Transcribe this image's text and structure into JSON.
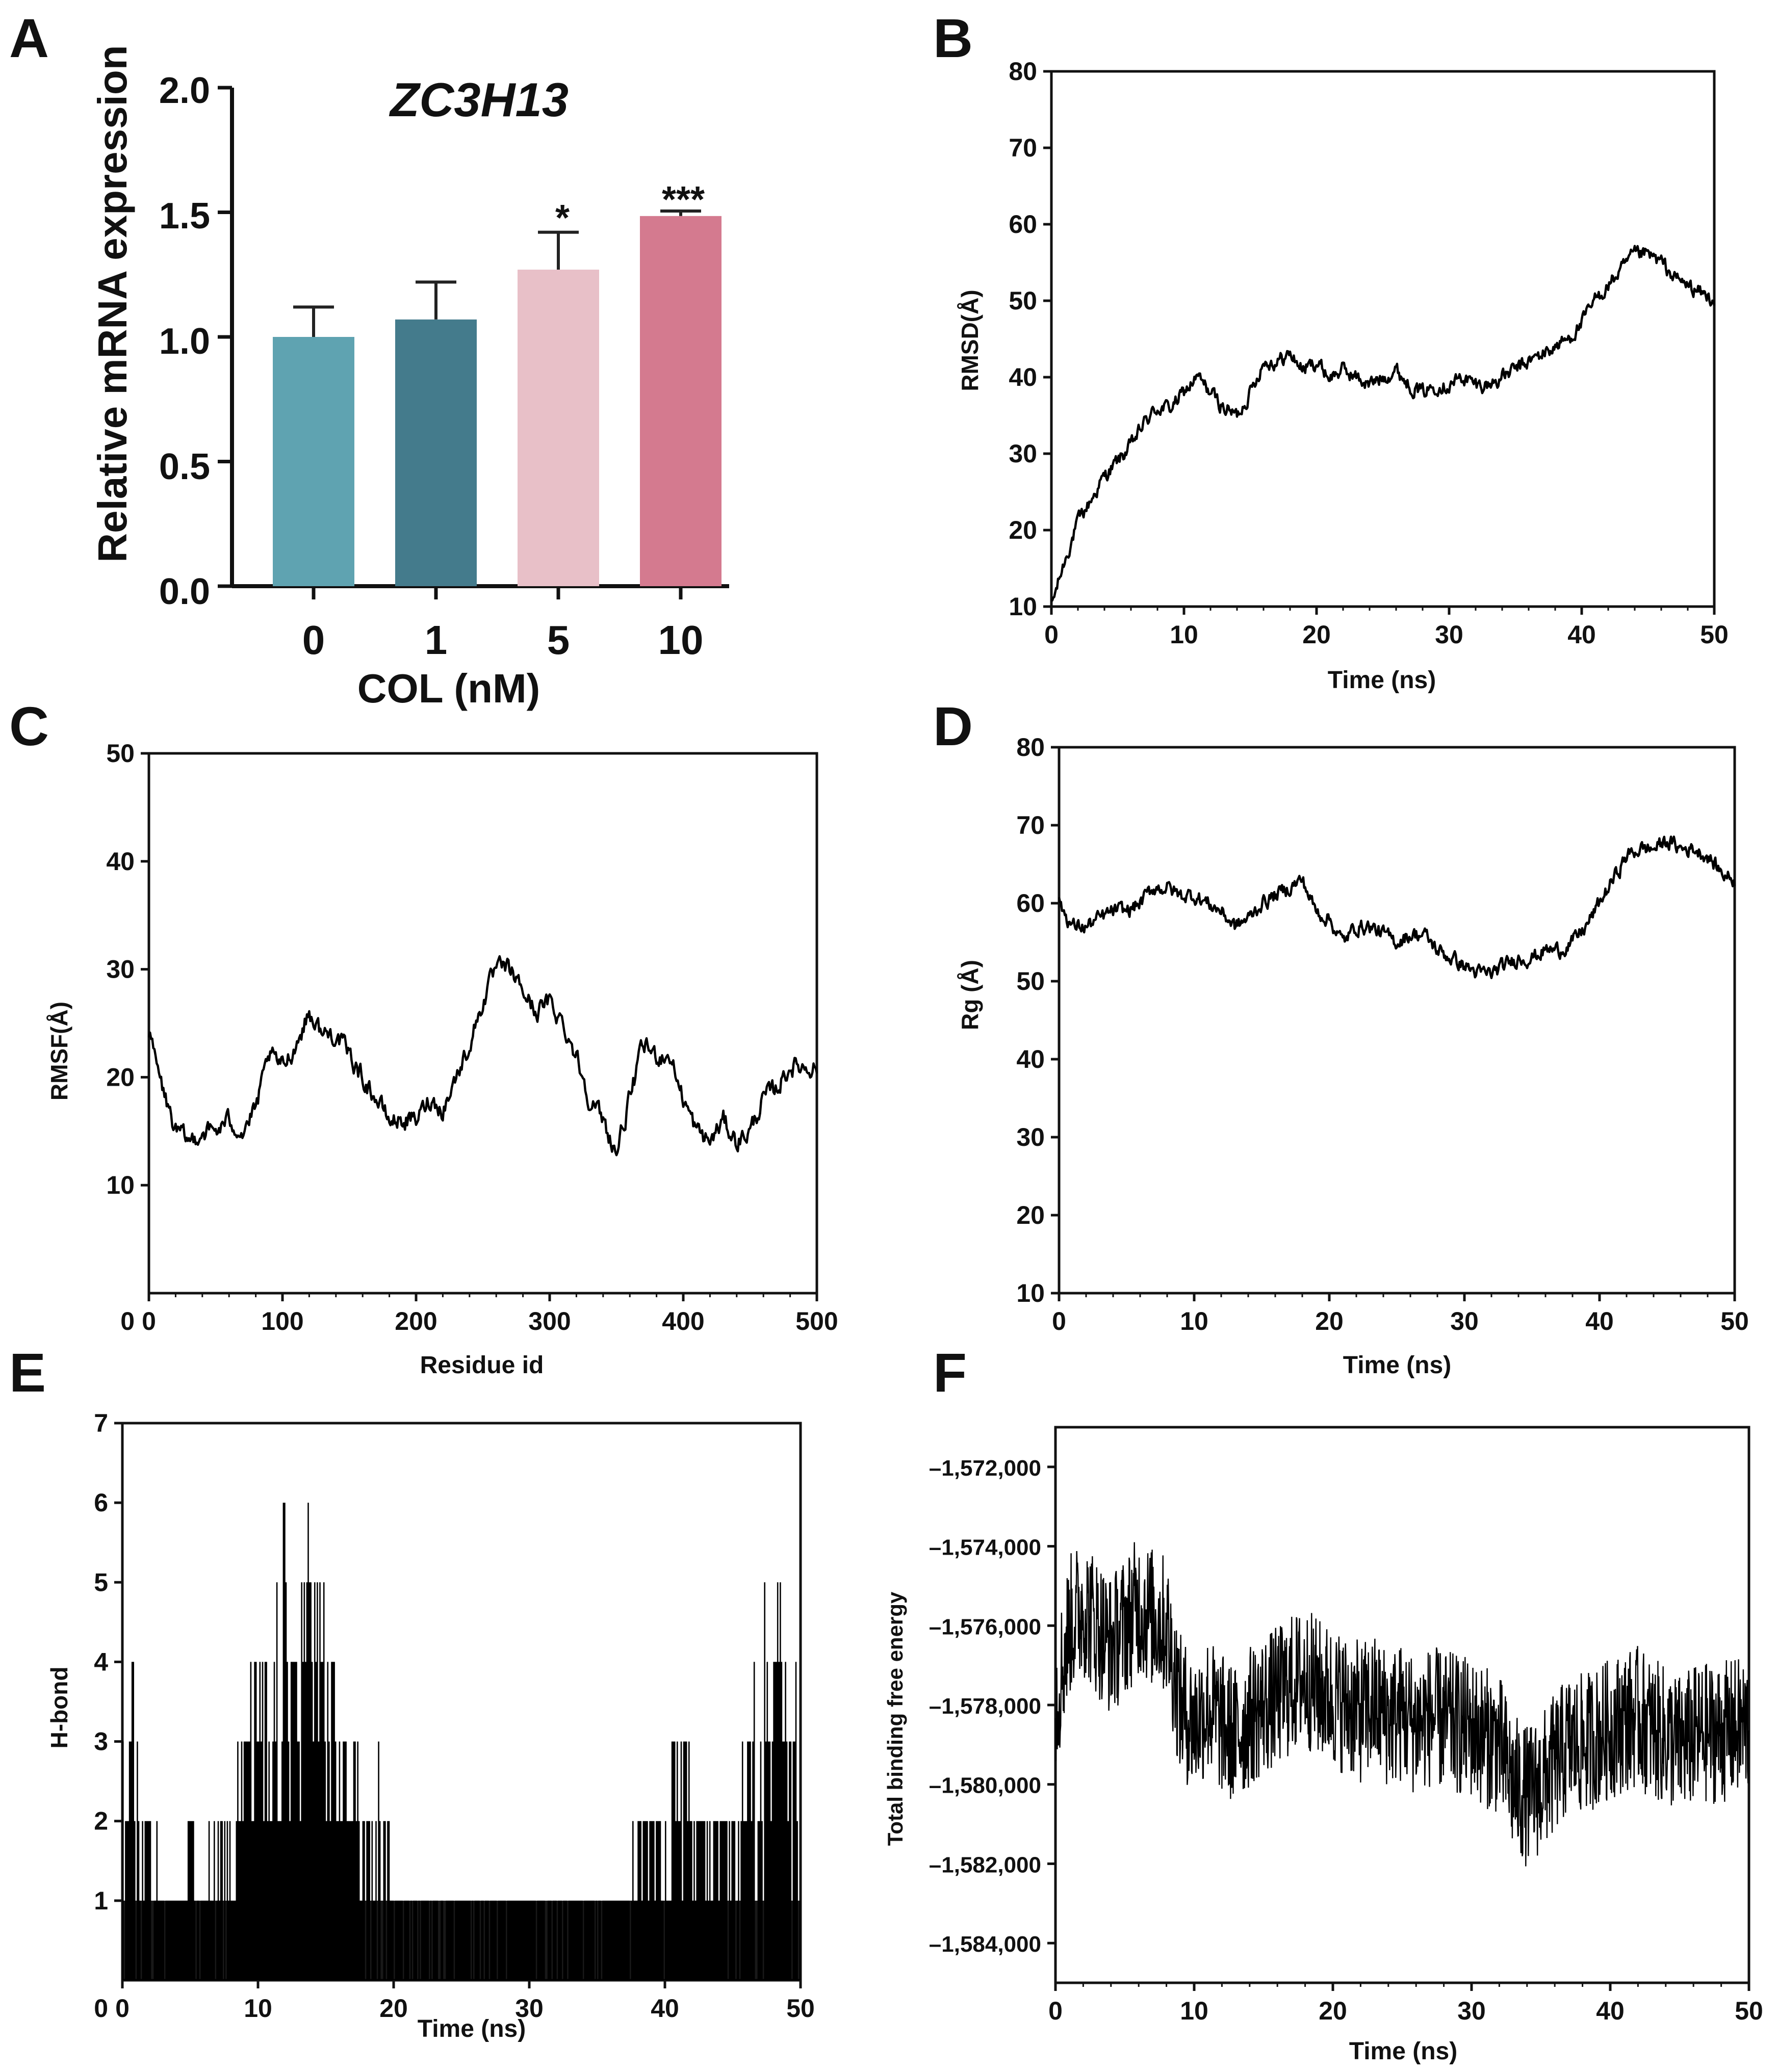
{
  "chart_data": [
    {
      "panel": "A",
      "type": "bar",
      "title": "ZC3H13",
      "xlabel": "COL (nM)",
      "ylabel": "Relative mRNA expression",
      "categories": [
        "0",
        "1",
        "5",
        "10"
      ],
      "values": [
        1.0,
        1.07,
        1.27,
        1.485
      ],
      "errors": [
        0.12,
        0.15,
        0.15,
        0.02
      ],
      "significance": [
        "",
        "",
        "*",
        "***"
      ],
      "colors": [
        "#5fa3b1",
        "#447b8c",
        "#e8c0c8",
        "#d47a8f"
      ],
      "ylim": [
        0,
        2.0
      ],
      "yticks": [
        "0.0",
        "0.5",
        "1.0",
        "1.5",
        "2.0"
      ]
    },
    {
      "panel": "B",
      "type": "line",
      "xlabel": "Time (ns)",
      "ylabel": "RMSD(Å)",
      "xlim": [
        0,
        50
      ],
      "ylim": [
        10,
        80
      ],
      "xticks": [
        "0",
        "10",
        "20",
        "30",
        "40",
        "50"
      ],
      "yticks": [
        "10",
        "20",
        "30",
        "40",
        "50",
        "60",
        "70",
        "80"
      ],
      "x": [
        0,
        1,
        2,
        3,
        4,
        5,
        6,
        7,
        8,
        9,
        10,
        11,
        12,
        13,
        14,
        15,
        16,
        17,
        18,
        19,
        20,
        21,
        22,
        23,
        24,
        25,
        26,
        27,
        28,
        29,
        30,
        31,
        32,
        33,
        34,
        35,
        36,
        37,
        38,
        39,
        40,
        41,
        42,
        43,
        44,
        45,
        46,
        47,
        48,
        49,
        50
      ],
      "y": [
        10,
        16,
        21,
        24,
        27,
        29,
        31,
        34,
        36,
        36,
        38,
        40,
        38,
        36,
        35,
        38,
        42,
        42,
        43,
        41,
        42,
        40,
        41,
        40,
        39,
        40,
        41,
        39,
        38,
        39,
        39,
        40,
        39,
        39,
        40,
        41,
        42,
        43,
        44,
        45,
        47,
        50,
        52,
        54,
        56,
        56,
        55,
        53,
        52,
        51,
        50
      ]
    },
    {
      "panel": "C",
      "type": "line",
      "xlabel": "Residue id",
      "ylabel": "RMSF(Å)",
      "xlim": [
        0,
        500
      ],
      "ylim": [
        0,
        50
      ],
      "xticks": [
        "0",
        "100",
        "200",
        "300",
        "400",
        "500"
      ],
      "yticks": [
        "10",
        "20",
        "30",
        "40",
        "50"
      ],
      "x": [
        0,
        10,
        20,
        30,
        40,
        50,
        60,
        70,
        80,
        90,
        100,
        110,
        120,
        130,
        140,
        150,
        160,
        170,
        180,
        190,
        200,
        210,
        220,
        230,
        240,
        250,
        260,
        270,
        280,
        290,
        300,
        310,
        320,
        330,
        340,
        350,
        360,
        370,
        380,
        390,
        400,
        410,
        420,
        430,
        440,
        450,
        460,
        470,
        480,
        490,
        500
      ],
      "y": [
        24,
        19,
        15,
        14,
        15,
        15,
        16,
        15,
        17,
        22,
        21,
        23,
        26,
        24,
        24,
        22,
        20,
        18,
        16,
        16,
        16,
        18,
        17,
        20,
        23,
        27,
        30,
        30,
        28,
        26,
        27,
        25,
        22,
        18,
        16,
        13,
        18,
        23,
        22,
        22,
        18,
        15,
        14,
        16,
        14,
        15,
        18,
        19,
        21,
        21,
        21
      ]
    },
    {
      "panel": "D",
      "type": "line",
      "xlabel": "Time (ns)",
      "ylabel": "Rg (Å)",
      "xlim": [
        0,
        50
      ],
      "ylim": [
        10,
        80
      ],
      "xticks": [
        "0",
        "10",
        "20",
        "30",
        "40",
        "50"
      ],
      "yticks": [
        "10",
        "20",
        "30",
        "40",
        "50",
        "60",
        "70",
        "80"
      ],
      "x": [
        0,
        1,
        2,
        3,
        4,
        5,
        6,
        7,
        8,
        9,
        10,
        11,
        12,
        13,
        14,
        15,
        16,
        17,
        18,
        19,
        20,
        21,
        22,
        23,
        24,
        25,
        26,
        27,
        28,
        29,
        30,
        31,
        32,
        33,
        34,
        35,
        36,
        37,
        38,
        39,
        40,
        41,
        42,
        43,
        44,
        45,
        46,
        47,
        48,
        49,
        50
      ],
      "y": [
        60,
        57,
        57,
        58,
        59,
        59,
        60,
        62,
        62,
        61,
        61,
        60,
        59,
        57,
        58,
        60,
        61,
        62,
        63,
        59,
        58,
        55,
        57,
        57,
        56,
        55,
        56,
        56,
        54,
        53,
        52,
        51,
        51,
        52,
        53,
        53,
        54,
        54,
        55,
        57,
        60,
        63,
        66,
        67,
        67,
        68,
        67,
        67,
        66,
        64,
        63
      ]
    },
    {
      "panel": "E",
      "type": "line",
      "xlabel": "Time (ns)",
      "ylabel": "H-bond",
      "xlim": [
        0,
        50
      ],
      "ylim": [
        0,
        7
      ],
      "xticks": [
        "0",
        "10",
        "20",
        "30",
        "40",
        "50"
      ],
      "yticks": [
        "1",
        "2",
        "3",
        "4",
        "5",
        "6",
        "7"
      ],
      "x": [
        0,
        1,
        2,
        3,
        4,
        5,
        6,
        7,
        8,
        9,
        10,
        11,
        12,
        13,
        14,
        15,
        16,
        17,
        18,
        19,
        20,
        21,
        22,
        23,
        24,
        25,
        26,
        27,
        28,
        29,
        30,
        31,
        32,
        33,
        34,
        35,
        36,
        37,
        38,
        39,
        40,
        41,
        42,
        43,
        44,
        45,
        46,
        47,
        48,
        49,
        50
      ],
      "y": [
        4,
        3,
        2,
        1,
        1,
        2,
        1,
        2,
        2,
        3,
        4,
        3,
        5,
        4,
        6,
        4,
        3,
        3,
        2,
        3,
        1,
        1,
        1,
        1,
        1,
        1,
        1,
        1,
        1,
        1,
        1,
        1,
        1,
        1,
        1,
        1,
        1,
        1,
        2,
        2,
        2,
        3,
        2,
        2,
        2,
        2,
        3,
        4,
        5,
        4,
        3
      ]
    },
    {
      "panel": "F",
      "type": "line",
      "xlabel": "Time (ns)",
      "ylabel": "Total binding free energy",
      "xlim": [
        0,
        50
      ],
      "ylim": [
        -1585000,
        -1571000
      ],
      "xticks": [
        "0",
        "10",
        "20",
        "30",
        "40",
        "50"
      ],
      "yticks": [
        "–1,572,000",
        "–1,574,000",
        "–1,576,000",
        "–1,578,000",
        "–1,580,000",
        "–1,582,000",
        "–1,584,000"
      ],
      "x": [
        0,
        1,
        2,
        3,
        4,
        5,
        6,
        7,
        8,
        9,
        10,
        11,
        12,
        13,
        14,
        15,
        16,
        17,
        18,
        19,
        20,
        21,
        22,
        23,
        24,
        25,
        26,
        27,
        28,
        29,
        30,
        31,
        32,
        33,
        34,
        35,
        36,
        37,
        38,
        39,
        40,
        41,
        42,
        43,
        44,
        45,
        46,
        47,
        48,
        49,
        50
      ],
      "y": [
        -1578000,
        -1576000,
        -1575500,
        -1576000,
        -1576500,
        -1576000,
        -1575500,
        -1575800,
        -1576000,
        -1578000,
        -1578500,
        -1578000,
        -1578500,
        -1578800,
        -1578300,
        -1578000,
        -1577800,
        -1577500,
        -1577300,
        -1577600,
        -1577800,
        -1578000,
        -1578200,
        -1578000,
        -1578300,
        -1578200,
        -1578500,
        -1578300,
        -1578400,
        -1578500,
        -1578600,
        -1578800,
        -1579000,
        -1580000,
        -1580300,
        -1580000,
        -1579500,
        -1579000,
        -1579000,
        -1578800,
        -1578600,
        -1578400,
        -1578300,
        -1578600,
        -1578800,
        -1579000,
        -1578800,
        -1578700,
        -1578700,
        -1578600,
        -1578500
      ],
      "spread": 1800
    }
  ],
  "panel_labels": [
    "A",
    "B",
    "C",
    "D",
    "E",
    "F"
  ]
}
